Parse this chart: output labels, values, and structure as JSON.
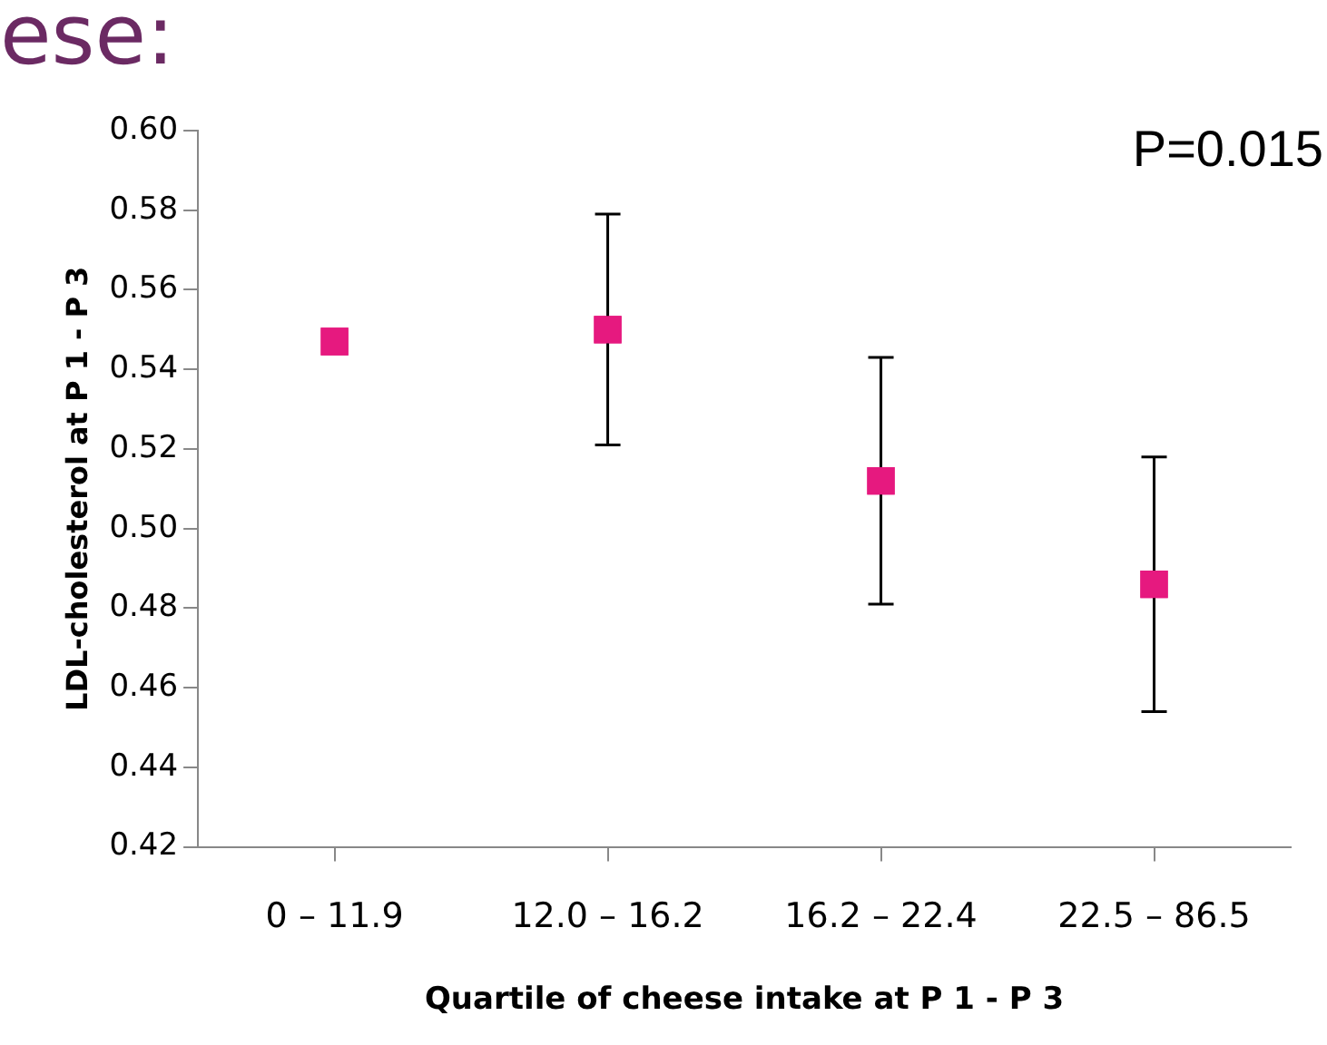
{
  "chart_data": {
    "type": "scatter",
    "title": "ese:",
    "xlabel": "Quartile of cheese intake at P 1 - P 3",
    "ylabel": "LDL-cholesterol at P 1 - P 3",
    "categories": [
      "0 – 11.9",
      "12.0 – 16.2",
      "16.2 – 22.4",
      "22.5 – 86.5"
    ],
    "series": [
      {
        "color": "#e6197f",
        "values": [
          0.547,
          0.55,
          0.512,
          0.486
        ],
        "errors": [
          null,
          0.029,
          0.031,
          0.032
        ]
      }
    ],
    "ylim": [
      0.42,
      0.6
    ],
    "yticks": [
      {
        "value": 0.42,
        "label": "0.42"
      },
      {
        "value": 0.44,
        "label": "0.44"
      },
      {
        "value": 0.46,
        "label": "0.46"
      },
      {
        "value": 0.48,
        "label": "0.48"
      },
      {
        "value": 0.5,
        "label": "0.50"
      },
      {
        "value": 0.52,
        "label": "0.52"
      },
      {
        "value": 0.54,
        "label": "0.54"
      },
      {
        "value": 0.56,
        "label": "0.56"
      },
      {
        "value": 0.58,
        "label": "0.58"
      },
      {
        "value": 0.6,
        "label": "0.60"
      }
    ],
    "annotations": [
      "P=0.015"
    ],
    "marker": "square",
    "grid": false,
    "legend": false
  }
}
